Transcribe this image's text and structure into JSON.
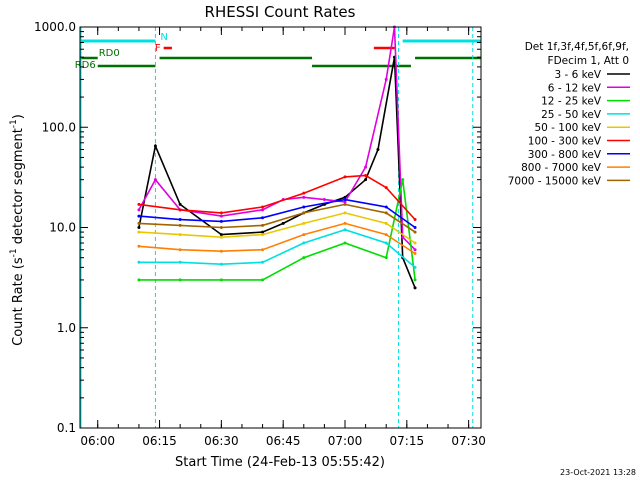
{
  "chart_data": {
    "type": "line",
    "title": "RHESSI Count Rates",
    "xlabel": "Start Time (24-Feb-13 05:55:42)",
    "ylabel": "Count Rate (s",
    "ylabel_exp1": "-1",
    "ylabel_mid": " detector segment",
    "ylabel_exp2": "-1",
    "ylabel_end": ")",
    "y_scale": "log",
    "ylim": [
      0.1,
      1000
    ],
    "xlim": [
      "05:55:42",
      "07:33:00"
    ],
    "x_ticks": [
      "06:00",
      "06:15",
      "06:30",
      "06:45",
      "07:00",
      "07:15",
      "07:30"
    ],
    "y_ticks": [
      "0.1",
      "1.0",
      "10.0",
      "100.0",
      "1000.0"
    ],
    "grid": false,
    "legend_position": "right",
    "legend_header": [
      "Det 1f,3f,4f,5f,6f,9f,",
      "FDecim 1, Att 0"
    ],
    "series": [
      {
        "name": "3 - 6 keV",
        "color": "#000000",
        "x": [
          "06:10",
          "06:14",
          "06:20",
          "06:30",
          "06:40",
          "06:45",
          "06:50",
          "06:55",
          "07:00",
          "07:05",
          "07:08",
          "07:12",
          "07:14",
          "07:17"
        ],
        "values": [
          10.0,
          65.0,
          17.0,
          8.5,
          9.0,
          11.0,
          14.0,
          17.0,
          20.0,
          30.0,
          60.0,
          500.0,
          5.0,
          2.5
        ]
      },
      {
        "name": "6 - 12 keV",
        "color": "#e000e0",
        "x": [
          "06:10",
          "06:14",
          "06:20",
          "06:30",
          "06:40",
          "06:45",
          "06:50",
          "06:55",
          "07:00",
          "07:05",
          "07:10",
          "07:12",
          "07:14",
          "07:17"
        ],
        "values": [
          15.0,
          30.0,
          15.0,
          13.0,
          15.0,
          19.0,
          20.0,
          19.0,
          18.0,
          40.0,
          300.0,
          1000.0,
          8.0,
          6.0
        ]
      },
      {
        "name": "12 - 25 keV",
        "color": "#00dd00",
        "x": [
          "06:10",
          "06:20",
          "06:30",
          "06:40",
          "06:50",
          "07:00",
          "07:10",
          "07:14",
          "07:17"
        ],
        "values": [
          3.0,
          3.0,
          3.0,
          3.0,
          5.0,
          7.0,
          5.0,
          30.0,
          3.0
        ]
      },
      {
        "name": "25 - 50 keV",
        "color": "#00e0e0",
        "x": [
          "06:10",
          "06:20",
          "06:30",
          "06:40",
          "06:50",
          "07:00",
          "07:10",
          "07:17"
        ],
        "values": [
          4.5,
          4.5,
          4.3,
          4.5,
          7.0,
          9.5,
          7.0,
          4.0
        ]
      },
      {
        "name": "50 - 100 keV",
        "color": "#e8c800",
        "x": [
          "06:10",
          "06:20",
          "06:30",
          "06:40",
          "06:50",
          "07:00",
          "07:10",
          "07:17"
        ],
        "values": [
          9.0,
          8.5,
          8.0,
          8.5,
          11.0,
          14.0,
          11.0,
          7.0
        ]
      },
      {
        "name": "100 - 300 keV",
        "color": "#ff0000",
        "x": [
          "06:10",
          "06:20",
          "06:30",
          "06:40",
          "06:50",
          "07:00",
          "07:05",
          "07:10",
          "07:17"
        ],
        "values": [
          17.0,
          15.0,
          14.0,
          16.0,
          22.0,
          32.0,
          33.0,
          25.0,
          12.0
        ]
      },
      {
        "name": "300 - 800 keV",
        "color": "#0000ff",
        "x": [
          "06:10",
          "06:20",
          "06:30",
          "06:40",
          "06:50",
          "07:00",
          "07:10",
          "07:17"
        ],
        "values": [
          13.0,
          12.0,
          11.5,
          12.5,
          16.0,
          19.0,
          16.0,
          10.0
        ]
      },
      {
        "name": "800 - 7000 keV",
        "color": "#ff8000",
        "x": [
          "06:10",
          "06:20",
          "06:30",
          "06:40",
          "06:50",
          "07:00",
          "07:10",
          "07:17"
        ],
        "values": [
          6.5,
          6.0,
          5.8,
          6.0,
          8.5,
          11.0,
          8.5,
          5.5
        ]
      },
      {
        "name": "7000 - 15000 keV",
        "color": "#a06400",
        "x": [
          "06:10",
          "06:20",
          "06:30",
          "06:40",
          "06:50",
          "07:00",
          "07:10",
          "07:17"
        ],
        "values": [
          11.0,
          10.5,
          10.0,
          10.5,
          14.0,
          17.0,
          14.0,
          9.0
        ]
      }
    ],
    "status_bars": [
      {
        "label": "N",
        "color": "#00e0e0",
        "segments": [
          [
            "05:55:42",
            "06:14"
          ],
          [
            "07:14",
            "07:33"
          ]
        ]
      },
      {
        "label": "F",
        "color": "#ff0000",
        "segments": [
          [
            "06:16",
            "06:18"
          ],
          [
            "07:07",
            "07:12"
          ]
        ]
      },
      {
        "label": "RD0",
        "color": "#007000",
        "segments": [
          [
            "05:55:42",
            "06:00"
          ],
          [
            "06:15",
            "06:52"
          ],
          [
            "07:17",
            "07:33"
          ]
        ]
      },
      {
        "label": "RD6",
        "color": "#007000",
        "segments": [
          [
            "06:00",
            "06:14"
          ],
          [
            "06:52",
            "07:16"
          ]
        ]
      }
    ],
    "vlines": [
      "06:14",
      "07:13",
      "07:31"
    ],
    "vline_color": "#00e0e0",
    "footer_date": "23-Oct-2021 13:28"
  }
}
